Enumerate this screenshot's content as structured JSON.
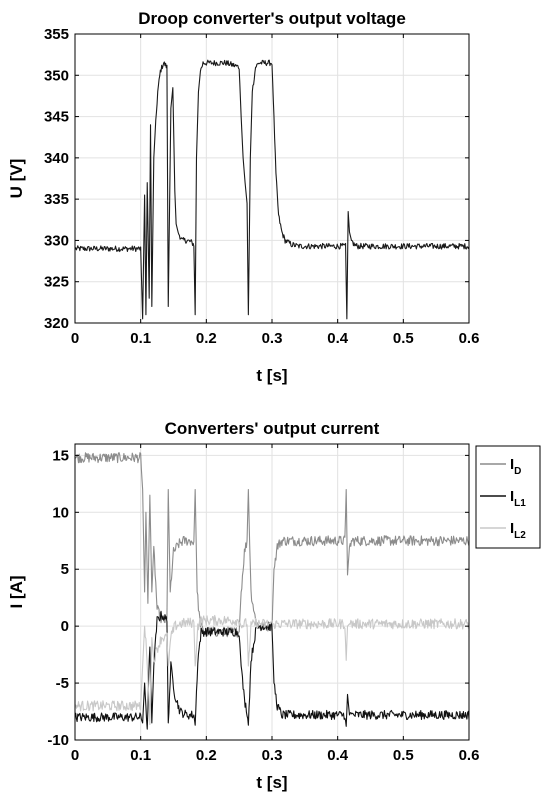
{
  "chart_data": [
    {
      "type": "line",
      "title": "Droop converter's output voltage",
      "xlabel": "t [s]",
      "ylabel": "U [V]",
      "xlim": [
        0,
        0.6
      ],
      "ylim": [
        320,
        355
      ],
      "xticks": [
        "0",
        "0.1",
        "0.2",
        "0.3",
        "0.4",
        "0.5",
        "0.6"
      ],
      "yticks": [
        "320",
        "325",
        "330",
        "335",
        "340",
        "345",
        "350",
        "355"
      ],
      "grid": true,
      "legend": "none",
      "series": [
        {
          "color": "#1a1a1a",
          "noise": 0.35,
          "x": [
            0,
            0.1,
            0.103,
            0.106,
            0.108,
            0.11,
            0.113,
            0.115,
            0.117,
            0.12,
            0.122,
            0.126,
            0.13,
            0.135,
            0.14,
            0.142,
            0.144,
            0.146,
            0.149,
            0.152,
            0.154,
            0.157,
            0.163,
            0.17,
            0.177,
            0.181,
            0.183,
            0.185,
            0.188,
            0.191,
            0.195,
            0.2,
            0.21,
            0.23,
            0.25,
            0.253,
            0.256,
            0.259,
            0.262,
            0.264,
            0.267,
            0.27,
            0.275,
            0.28,
            0.3,
            0.302,
            0.306,
            0.31,
            0.315,
            0.32,
            0.33,
            0.34,
            0.412,
            0.414,
            0.416,
            0.418,
            0.421,
            0.425,
            0.43,
            0.6
          ],
          "y": [
            329.0,
            329.0,
            320.5,
            335.5,
            321.0,
            337.0,
            323.0,
            344.0,
            322.0,
            340.0,
            343.0,
            348.0,
            350.5,
            351.5,
            351.0,
            322.0,
            334.0,
            346.0,
            348.5,
            336.0,
            332.0,
            331.0,
            330.0,
            330.0,
            329.8,
            329.5,
            321.0,
            340.0,
            348.0,
            350.5,
            351.5,
            351.5,
            351.5,
            351.5,
            351.0,
            345.0,
            340.0,
            337.0,
            334.5,
            321.0,
            340.0,
            348.0,
            351.0,
            351.5,
            351.5,
            347.0,
            338.0,
            333.0,
            331.0,
            330.0,
            329.5,
            329.3,
            329.3,
            320.5,
            333.5,
            331.0,
            330.0,
            329.5,
            329.3,
            329.3
          ]
        }
      ]
    },
    {
      "type": "line",
      "title": "Converters' output current",
      "xlabel": "t [s]",
      "ylabel": "I [A]",
      "xlim": [
        0,
        0.6
      ],
      "ylim": [
        -10,
        16
      ],
      "xticks": [
        "0",
        "0.1",
        "0.2",
        "0.3",
        "0.4",
        "0.5",
        "0.6"
      ],
      "yticks": [
        "-10",
        "-5",
        "0",
        "5",
        "10",
        "15"
      ],
      "grid": true,
      "legend": "outside-right",
      "series": [
        {
          "name": "I",
          "sub": "D",
          "color": "#8c8c8c",
          "noise": 0.45,
          "x": [
            0,
            0.1,
            0.103,
            0.106,
            0.108,
            0.111,
            0.114,
            0.117,
            0.12,
            0.125,
            0.132,
            0.14,
            0.142,
            0.145,
            0.15,
            0.158,
            0.165,
            0.175,
            0.181,
            0.183,
            0.186,
            0.19,
            0.195,
            0.2,
            0.25,
            0.253,
            0.258,
            0.262,
            0.264,
            0.268,
            0.275,
            0.28,
            0.3,
            0.303,
            0.308,
            0.315,
            0.325,
            0.34,
            0.411,
            0.413,
            0.415,
            0.418,
            0.422,
            0.6
          ],
          "y": [
            14.8,
            14.8,
            12.0,
            3.0,
            10.0,
            2.0,
            11.5,
            3.0,
            7.0,
            1.5,
            0.5,
            0.5,
            12.0,
            3.0,
            6.5,
            7.2,
            7.5,
            7.5,
            7.4,
            12.0,
            3.0,
            0.5,
            -0.5,
            -0.5,
            -0.5,
            3.0,
            6.5,
            7.5,
            12.0,
            3.0,
            0.5,
            0.0,
            0.0,
            5.0,
            7.0,
            7.5,
            7.5,
            7.5,
            7.5,
            12.0,
            4.5,
            7.0,
            7.5,
            7.5
          ]
        },
        {
          "name": "I",
          "sub": "L1",
          "color": "#111111",
          "noise": 0.4,
          "x": [
            0,
            0.1,
            0.103,
            0.106,
            0.11,
            0.114,
            0.117,
            0.12,
            0.125,
            0.132,
            0.14,
            0.142,
            0.146,
            0.152,
            0.16,
            0.17,
            0.181,
            0.183,
            0.187,
            0.192,
            0.2,
            0.25,
            0.253,
            0.258,
            0.262,
            0.264,
            0.268,
            0.275,
            0.28,
            0.3,
            0.303,
            0.308,
            0.315,
            0.33,
            0.411,
            0.413,
            0.415,
            0.418,
            0.6
          ],
          "y": [
            -8.0,
            -8.0,
            -8.5,
            -5.0,
            -9.0,
            -1.5,
            -8.5,
            -3.5,
            0.5,
            1.0,
            0.5,
            -8.5,
            -3.5,
            -6.0,
            -7.5,
            -7.8,
            -7.8,
            -8.7,
            -3.0,
            -0.5,
            -0.5,
            -0.5,
            -3.5,
            -6.5,
            -7.5,
            -8.7,
            -3.0,
            -0.5,
            0.0,
            0.0,
            -5.0,
            -7.0,
            -7.8,
            -7.8,
            -7.8,
            -8.8,
            -6.0,
            -7.8,
            -7.8
          ]
        },
        {
          "name": "I",
          "sub": "L2",
          "color": "#c8c8c8",
          "noise": 0.45,
          "x": [
            0,
            0.1,
            0.103,
            0.106,
            0.11,
            0.114,
            0.117,
            0.12,
            0.125,
            0.132,
            0.14,
            0.142,
            0.146,
            0.152,
            0.16,
            0.17,
            0.181,
            0.183,
            0.187,
            0.192,
            0.2,
            0.25,
            0.253,
            0.258,
            0.262,
            0.264,
            0.268,
            0.275,
            0.28,
            0.3,
            0.303,
            0.308,
            0.315,
            0.33,
            0.411,
            0.413,
            0.415,
            0.418,
            0.6
          ],
          "y": [
            -7.0,
            -7.0,
            -3.5,
            0.0,
            -3.0,
            -8.5,
            -1.0,
            -3.0,
            -2.0,
            -1.0,
            -1.0,
            -3.5,
            -1.0,
            0.0,
            0.2,
            0.3,
            0.3,
            -3.5,
            0.0,
            0.5,
            0.5,
            0.5,
            0.0,
            0.2,
            0.3,
            -3.5,
            0.0,
            0.3,
            0.2,
            0.2,
            0.2,
            0.2,
            0.2,
            0.2,
            0.2,
            -3.0,
            0.0,
            0.2,
            0.2
          ]
        }
      ]
    }
  ]
}
